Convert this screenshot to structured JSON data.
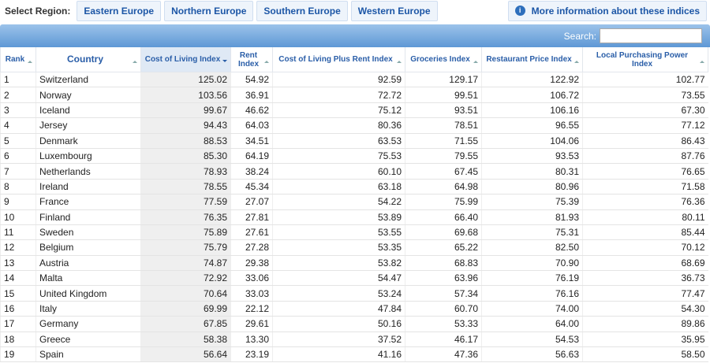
{
  "region_bar": {
    "label": "Select Region:",
    "buttons": [
      "Eastern Europe",
      "Northern Europe",
      "Southern Europe",
      "Western Europe"
    ],
    "info": "More information about these indices"
  },
  "search_label": "Search:",
  "table": {
    "headers": [
      "Rank",
      "Country",
      "Cost of Living Index",
      "Rent Index",
      "Cost of Living Plus Rent Index",
      "Groceries Index",
      "Restaurant Price Index",
      "Local Purchasing Power Index"
    ],
    "rows": [
      [
        "1",
        "Switzerland",
        "125.02",
        "54.92",
        "92.59",
        "129.17",
        "122.92",
        "102.77"
      ],
      [
        "2",
        "Norway",
        "103.56",
        "36.91",
        "72.72",
        "99.51",
        "106.72",
        "73.55"
      ],
      [
        "3",
        "Iceland",
        "99.67",
        "46.62",
        "75.12",
        "93.51",
        "106.16",
        "67.30"
      ],
      [
        "4",
        "Jersey",
        "94.43",
        "64.03",
        "80.36",
        "78.51",
        "96.55",
        "77.12"
      ],
      [
        "5",
        "Denmark",
        "88.53",
        "34.51",
        "63.53",
        "71.55",
        "104.06",
        "86.43"
      ],
      [
        "6",
        "Luxembourg",
        "85.30",
        "64.19",
        "75.53",
        "79.55",
        "93.53",
        "87.76"
      ],
      [
        "7",
        "Netherlands",
        "78.93",
        "38.24",
        "60.10",
        "67.45",
        "80.31",
        "76.65"
      ],
      [
        "8",
        "Ireland",
        "78.55",
        "45.34",
        "63.18",
        "64.98",
        "80.96",
        "71.58"
      ],
      [
        "9",
        "France",
        "77.59",
        "27.07",
        "54.22",
        "75.99",
        "75.39",
        "76.36"
      ],
      [
        "10",
        "Finland",
        "76.35",
        "27.81",
        "53.89",
        "66.40",
        "81.93",
        "80.11"
      ],
      [
        "11",
        "Sweden",
        "75.89",
        "27.61",
        "53.55",
        "69.68",
        "75.31",
        "85.44"
      ],
      [
        "12",
        "Belgium",
        "75.79",
        "27.28",
        "53.35",
        "65.22",
        "82.50",
        "70.12"
      ],
      [
        "13",
        "Austria",
        "74.87",
        "29.38",
        "53.82",
        "68.83",
        "70.90",
        "68.69"
      ],
      [
        "14",
        "Malta",
        "72.92",
        "33.06",
        "54.47",
        "63.96",
        "76.19",
        "36.73"
      ],
      [
        "15",
        "United Kingdom",
        "70.64",
        "33.03",
        "53.24",
        "57.34",
        "76.16",
        "77.47"
      ],
      [
        "16",
        "Italy",
        "69.99",
        "22.12",
        "47.84",
        "60.70",
        "74.00",
        "54.30"
      ],
      [
        "17",
        "Germany",
        "67.85",
        "29.61",
        "50.16",
        "53.33",
        "64.00",
        "89.86"
      ],
      [
        "18",
        "Greece",
        "58.38",
        "13.30",
        "37.52",
        "46.17",
        "54.53",
        "35.95"
      ],
      [
        "19",
        "Spain",
        "56.64",
        "23.19",
        "41.16",
        "47.36",
        "56.63",
        "58.50"
      ]
    ]
  }
}
